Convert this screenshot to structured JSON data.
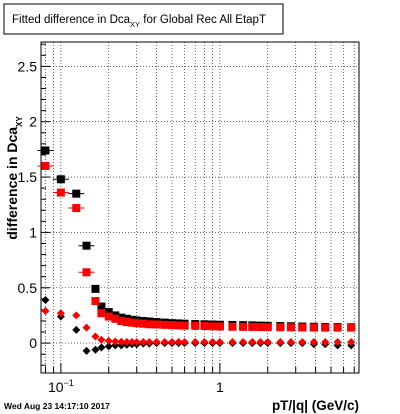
{
  "footer": {
    "timestamp": "Wed Aug 23 14:17:10 2017"
  },
  "chart_data": {
    "type": "scatter",
    "title": "Fitted difference in Dca",
    "title_subscript": "XY",
    "title_suffix": " for Global Rec All EtapT",
    "xlabel": "pT/|q| (GeV/c)",
    "ylabel": "difference in Dca",
    "ylabel_subscript": "XY",
    "x_scale": "log",
    "xlim": [
      0.075,
      7.5
    ],
    "ylim": [
      -0.27,
      2.72
    ],
    "grid": true,
    "x_major_ticks": [
      {
        "v": 0.1,
        "label": "10",
        "exp": "−1"
      },
      {
        "v": 1,
        "label": "1"
      }
    ],
    "y_ticks": [
      0,
      0.5,
      1,
      1.5,
      2,
      2.5
    ],
    "series": [
      {
        "color": "#000000",
        "marker": "square",
        "points": [
          [
            0.08,
            1.74
          ],
          [
            0.1,
            1.48
          ],
          [
            0.125,
            1.35
          ],
          [
            0.145,
            0.88
          ],
          [
            0.165,
            0.49
          ],
          [
            0.18,
            0.33
          ],
          [
            0.2,
            0.28
          ],
          [
            0.22,
            0.25
          ],
          [
            0.24,
            0.23
          ],
          [
            0.26,
            0.22
          ],
          [
            0.28,
            0.21
          ],
          [
            0.3,
            0.205
          ],
          [
            0.33,
            0.2
          ],
          [
            0.36,
            0.195
          ],
          [
            0.4,
            0.19
          ],
          [
            0.45,
            0.185
          ],
          [
            0.5,
            0.18
          ],
          [
            0.55,
            0.178
          ],
          [
            0.6,
            0.175
          ],
          [
            0.7,
            0.172
          ],
          [
            0.8,
            0.17
          ],
          [
            0.9,
            0.168
          ],
          [
            1.0,
            0.166
          ],
          [
            1.2,
            0.164
          ],
          [
            1.4,
            0.162
          ],
          [
            1.6,
            0.16
          ],
          [
            1.8,
            0.158
          ],
          [
            2.0,
            0.156
          ],
          [
            2.4,
            0.154
          ],
          [
            2.8,
            0.152
          ],
          [
            3.3,
            0.15
          ],
          [
            3.9,
            0.148
          ],
          [
            4.6,
            0.146
          ],
          [
            5.5,
            0.145
          ],
          [
            6.7,
            0.144
          ]
        ]
      },
      {
        "color": "#ff0000",
        "marker": "square",
        "points": [
          [
            0.08,
            1.6
          ],
          [
            0.1,
            1.36
          ],
          [
            0.125,
            1.22
          ],
          [
            0.145,
            0.64
          ],
          [
            0.165,
            0.38
          ],
          [
            0.18,
            0.27
          ],
          [
            0.2,
            0.24
          ],
          [
            0.22,
            0.22
          ],
          [
            0.24,
            0.2
          ],
          [
            0.26,
            0.19
          ],
          [
            0.28,
            0.185
          ],
          [
            0.3,
            0.18
          ],
          [
            0.33,
            0.175
          ],
          [
            0.36,
            0.17
          ],
          [
            0.4,
            0.168
          ],
          [
            0.45,
            0.165
          ],
          [
            0.5,
            0.162
          ],
          [
            0.55,
            0.16
          ],
          [
            0.6,
            0.158
          ],
          [
            0.7,
            0.156
          ],
          [
            0.8,
            0.154
          ],
          [
            0.9,
            0.152
          ],
          [
            1.0,
            0.15
          ],
          [
            1.2,
            0.148
          ],
          [
            1.4,
            0.147
          ],
          [
            1.6,
            0.146
          ],
          [
            1.8,
            0.145
          ],
          [
            2.0,
            0.144
          ],
          [
            2.4,
            0.143
          ],
          [
            2.8,
            0.142
          ],
          [
            3.3,
            0.141
          ],
          [
            3.9,
            0.14
          ],
          [
            4.6,
            0.14
          ],
          [
            5.5,
            0.14
          ],
          [
            6.7,
            0.14
          ]
        ]
      },
      {
        "color": "#000000",
        "marker": "diamond",
        "points": [
          [
            0.08,
            0.39
          ],
          [
            0.1,
            0.24
          ],
          [
            0.125,
            0.12
          ],
          [
            0.145,
            -0.07
          ],
          [
            0.165,
            -0.06
          ],
          [
            0.18,
            -0.04
          ],
          [
            0.2,
            -0.03
          ],
          [
            0.22,
            -0.02
          ],
          [
            0.24,
            -0.02
          ],
          [
            0.26,
            -0.015
          ],
          [
            0.28,
            -0.01
          ],
          [
            0.3,
            -0.01
          ],
          [
            0.33,
            -0.005
          ],
          [
            0.36,
            -0.005
          ],
          [
            0.4,
            0.0
          ],
          [
            0.45,
            0.0
          ],
          [
            0.5,
            0.0
          ],
          [
            0.55,
            0.0
          ],
          [
            0.6,
            0.0
          ],
          [
            0.7,
            0.0
          ],
          [
            0.8,
            0.0
          ],
          [
            0.9,
            0.0
          ],
          [
            1.0,
            0.0
          ],
          [
            1.2,
            0.0
          ],
          [
            1.4,
            0.0
          ],
          [
            1.6,
            0.0
          ],
          [
            1.8,
            0.0
          ],
          [
            2.0,
            0.0
          ],
          [
            2.4,
            0.0
          ],
          [
            2.8,
            0.0
          ],
          [
            3.3,
            0.0
          ],
          [
            3.9,
            -0.01
          ],
          [
            4.6,
            -0.01
          ],
          [
            5.5,
            -0.02
          ],
          [
            6.7,
            -0.02
          ]
        ]
      },
      {
        "color": "#ff0000",
        "marker": "diamond",
        "points": [
          [
            0.08,
            0.29
          ],
          [
            0.1,
            0.27
          ],
          [
            0.125,
            0.25
          ],
          [
            0.145,
            0.14
          ],
          [
            0.165,
            0.06
          ],
          [
            0.18,
            0.03
          ],
          [
            0.2,
            0.02
          ],
          [
            0.22,
            0.015
          ],
          [
            0.24,
            0.012
          ],
          [
            0.26,
            0.01
          ],
          [
            0.28,
            0.01
          ],
          [
            0.3,
            0.01
          ],
          [
            0.33,
            0.01
          ],
          [
            0.36,
            0.01
          ],
          [
            0.4,
            0.01
          ],
          [
            0.45,
            0.01
          ],
          [
            0.5,
            0.01
          ],
          [
            0.55,
            0.01
          ],
          [
            0.6,
            0.01
          ],
          [
            0.7,
            0.01
          ],
          [
            0.8,
            0.01
          ],
          [
            0.9,
            0.01
          ],
          [
            1.0,
            0.01
          ],
          [
            1.2,
            0.01
          ],
          [
            1.4,
            0.01
          ],
          [
            1.6,
            0.01
          ],
          [
            1.8,
            0.01
          ],
          [
            2.0,
            0.01
          ],
          [
            2.4,
            0.01
          ],
          [
            2.8,
            0.01
          ],
          [
            3.3,
            0.01
          ],
          [
            3.9,
            0.01
          ],
          [
            4.6,
            0.01
          ],
          [
            5.5,
            0.01
          ],
          [
            6.7,
            0.01
          ]
        ]
      }
    ]
  }
}
